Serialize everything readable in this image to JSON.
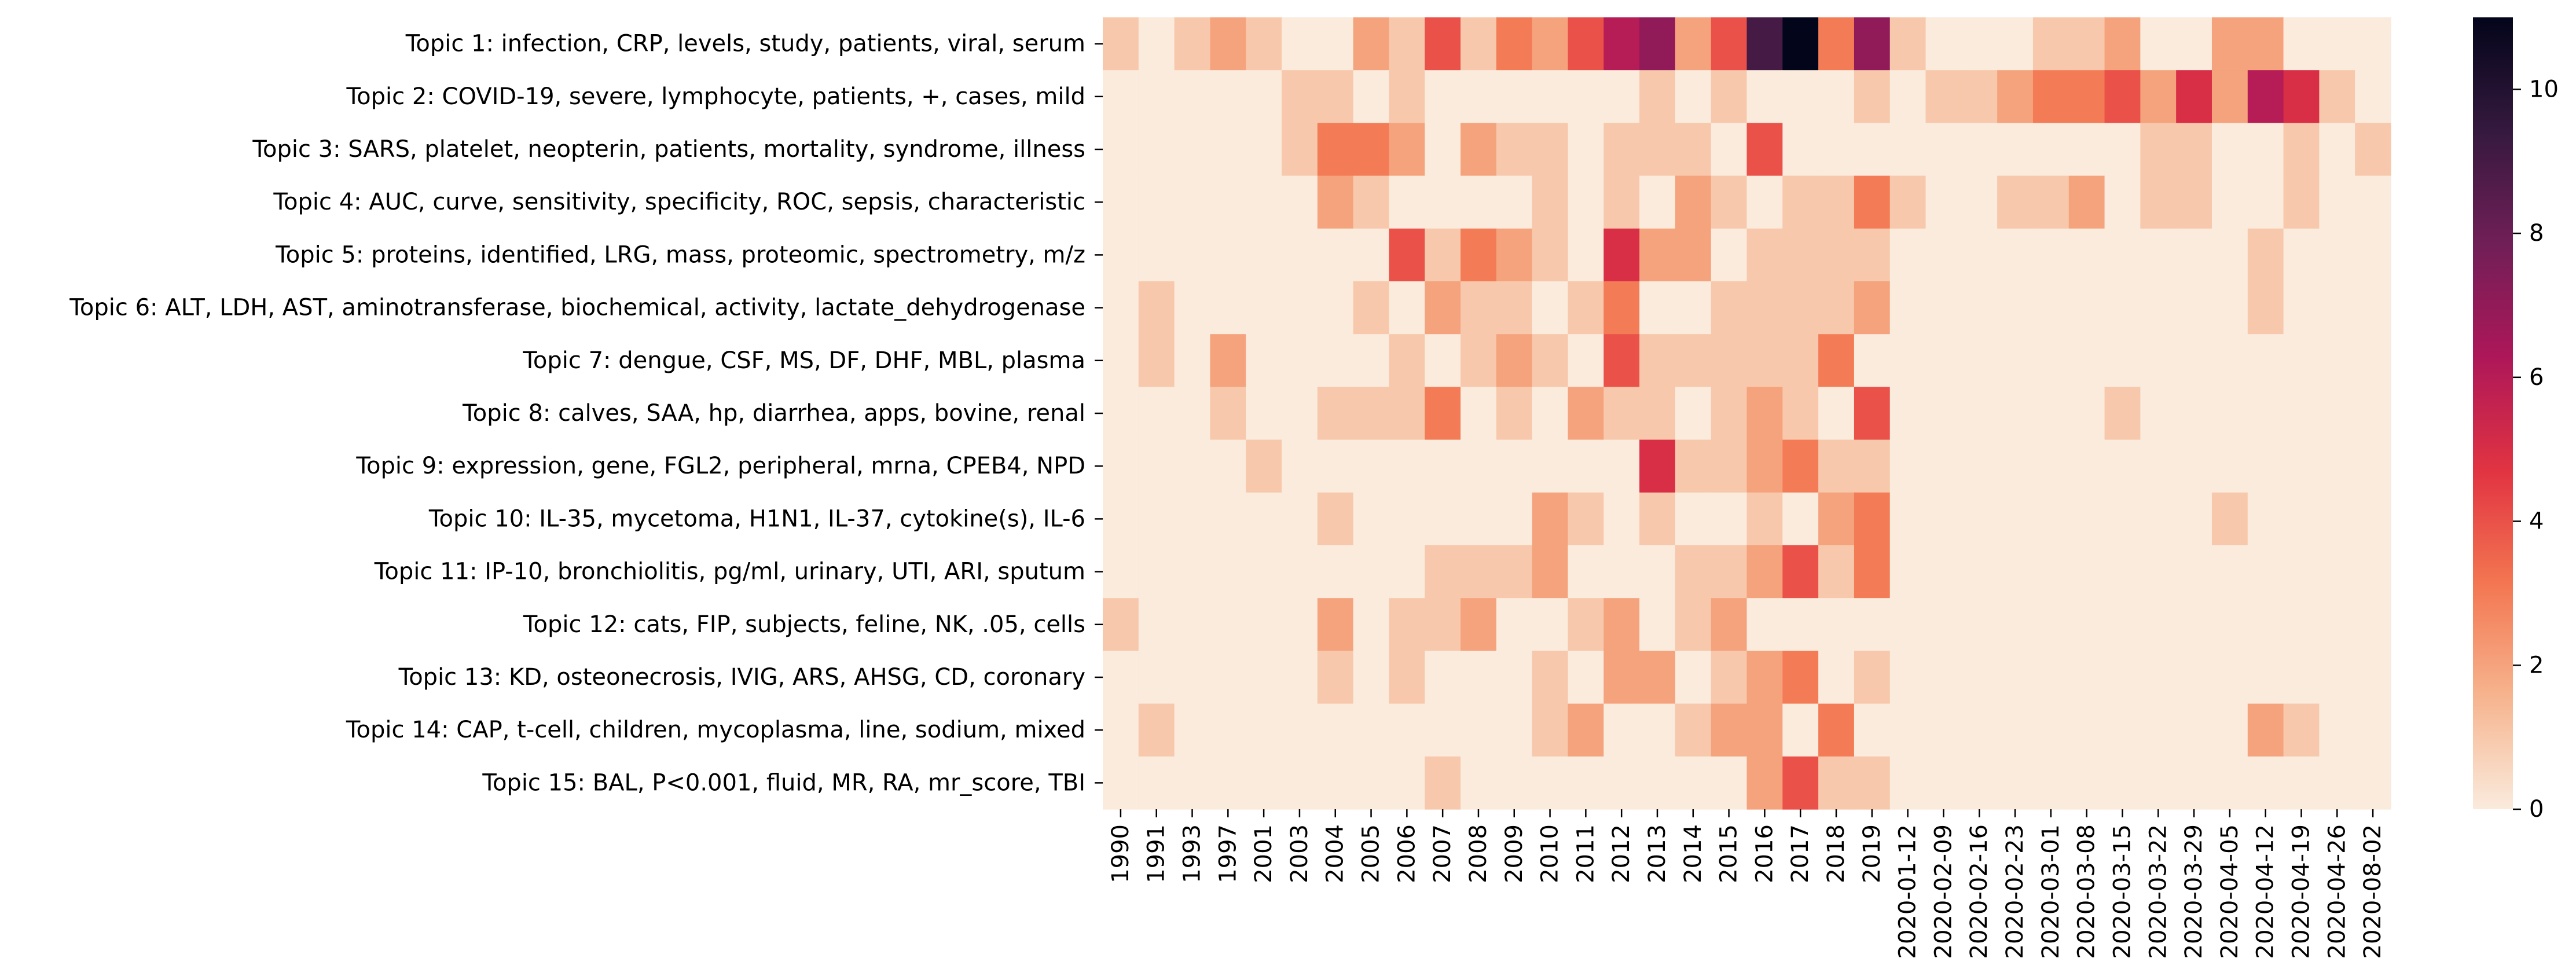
{
  "chart_data": {
    "type": "heatmap",
    "x_labels": [
      "1990",
      "1991",
      "1993",
      "1997",
      "2001",
      "2003",
      "2004",
      "2005",
      "2006",
      "2007",
      "2008",
      "2009",
      "2010",
      "2011",
      "2012",
      "2013",
      "2014",
      "2015",
      "2016",
      "2017",
      "2018",
      "2019",
      "2020-01-12",
      "2020-02-09",
      "2020-02-16",
      "2020-02-23",
      "2020-03-01",
      "2020-03-08",
      "2020-03-15",
      "2020-03-22",
      "2020-03-29",
      "2020-04-05",
      "2020-04-12",
      "2020-04-19",
      "2020-04-26",
      "2020-08-02"
    ],
    "y_labels": [
      "Topic 1: infection, CRP, levels, study, patients, viral, serum",
      "Topic 2: COVID-19, severe, lymphocyte, patients, +, cases, mild",
      "Topic 3: SARS, platelet, neopterin, patients, mortality, syndrome, illness",
      "Topic 4: AUC, curve, sensitivity, specificity, ROC, sepsis, characteristic",
      "Topic 5: proteins, identified, LRG, mass, proteomic, spectrometry, m/z",
      "Topic 6: ALT, LDH, AST, aminotransferase, biochemical, activity, lactate_dehydrogenase",
      "Topic 7: dengue, CSF, MS, DF, DHF, MBL, plasma",
      "Topic 8: calves, SAA, hp, diarrhea, apps, bovine, renal",
      "Topic 9: expression, gene, FGL2, peripheral, mrna, CPEB4, NPD",
      "Topic 10: IL-35, mycetoma, H1N1, IL-37, cytokine(s), IL-6",
      "Topic 11: IP-10, bronchiolitis, pg/ml, urinary, UTI, ARI, sputum",
      "Topic 12: cats, FIP, subjects, feline, NK, .05, cells",
      "Topic 13: KD, osteonecrosis, IVIG, ARS, AHSG, CD, coronary",
      "Topic 14: CAP, t-cell, children, mycoplasma, line, sodium, mixed",
      "Topic 15: BAL, P<0.001, fluid, MR, RA, mr_score, TBI"
    ],
    "values": [
      [
        1,
        0,
        1,
        2,
        1,
        0,
        0,
        2,
        1,
        4,
        1,
        3,
        2,
        4,
        6,
        7,
        2,
        4,
        9,
        11,
        3,
        7,
        1,
        0,
        0,
        0,
        1,
        1,
        2,
        0,
        0,
        2,
        2,
        0,
        0,
        0
      ],
      [
        0,
        0,
        0,
        0,
        0,
        1,
        1,
        0,
        1,
        0,
        0,
        0,
        0,
        0,
        0,
        1,
        0,
        1,
        0,
        0,
        0,
        1,
        0,
        1,
        1,
        2,
        3,
        3,
        4,
        2,
        5,
        2,
        6,
        5,
        1,
        0
      ],
      [
        0,
        0,
        0,
        0,
        0,
        1,
        3,
        3,
        2,
        0,
        2,
        1,
        1,
        0,
        1,
        1,
        1,
        0,
        4,
        0,
        0,
        0,
        0,
        0,
        0,
        0,
        0,
        0,
        0,
        1,
        1,
        0,
        0,
        1,
        0,
        1
      ],
      [
        0,
        0,
        0,
        0,
        0,
        0,
        2,
        1,
        0,
        0,
        0,
        0,
        1,
        0,
        1,
        0,
        2,
        1,
        0,
        1,
        1,
        3,
        1,
        0,
        0,
        1,
        1,
        2,
        0,
        1,
        1,
        0,
        0,
        1,
        0,
        0
      ],
      [
        0,
        0,
        0,
        0,
        0,
        0,
        0,
        0,
        4,
        1,
        3,
        2,
        1,
        0,
        5,
        2,
        2,
        0,
        1,
        1,
        1,
        1,
        0,
        0,
        0,
        0,
        0,
        0,
        0,
        0,
        0,
        0,
        1,
        0,
        0,
        0
      ],
      [
        0,
        1,
        0,
        0,
        0,
        0,
        0,
        1,
        0,
        2,
        1,
        1,
        0,
        1,
        3,
        0,
        0,
        1,
        1,
        1,
        1,
        2,
        0,
        0,
        0,
        0,
        0,
        0,
        0,
        0,
        0,
        0,
        1,
        0,
        0,
        0
      ],
      [
        0,
        1,
        0,
        2,
        0,
        0,
        0,
        0,
        1,
        0,
        1,
        2,
        1,
        0,
        4,
        1,
        1,
        1,
        1,
        1,
        3,
        0,
        0,
        0,
        0,
        0,
        0,
        0,
        0,
        0,
        0,
        0,
        0,
        0,
        0,
        0
      ],
      [
        0,
        0,
        0,
        1,
        0,
        0,
        1,
        1,
        1,
        3,
        0,
        1,
        0,
        2,
        1,
        1,
        0,
        1,
        2,
        1,
        0,
        4,
        0,
        0,
        0,
        0,
        0,
        0,
        1,
        0,
        0,
        0,
        0,
        0,
        0,
        0
      ],
      [
        0,
        0,
        0,
        0,
        1,
        0,
        0,
        0,
        0,
        0,
        0,
        0,
        0,
        0,
        0,
        5,
        1,
        1,
        2,
        3,
        1,
        1,
        0,
        0,
        0,
        0,
        0,
        0,
        0,
        0,
        0,
        0,
        0,
        0,
        0,
        0
      ],
      [
        0,
        0,
        0,
        0,
        0,
        0,
        1,
        0,
        0,
        0,
        0,
        0,
        2,
        1,
        0,
        1,
        0,
        0,
        1,
        0,
        2,
        3,
        0,
        0,
        0,
        0,
        0,
        0,
        0,
        0,
        0,
        1,
        0,
        0,
        0,
        0
      ],
      [
        0,
        0,
        0,
        0,
        0,
        0,
        0,
        0,
        0,
        1,
        1,
        1,
        2,
        0,
        0,
        0,
        1,
        1,
        2,
        4,
        1,
        3,
        0,
        0,
        0,
        0,
        0,
        0,
        0,
        0,
        0,
        0,
        0,
        0,
        0,
        0
      ],
      [
        1,
        0,
        0,
        0,
        0,
        0,
        2,
        0,
        1,
        1,
        2,
        0,
        0,
        1,
        2,
        0,
        1,
        2,
        0,
        0,
        0,
        0,
        0,
        0,
        0,
        0,
        0,
        0,
        0,
        0,
        0,
        0,
        0,
        0,
        0,
        0
      ],
      [
        0,
        0,
        0,
        0,
        0,
        0,
        1,
        0,
        1,
        0,
        0,
        0,
        1,
        0,
        2,
        2,
        0,
        1,
        2,
        3,
        0,
        1,
        0,
        0,
        0,
        0,
        0,
        0,
        0,
        0,
        0,
        0,
        0,
        0,
        0,
        0
      ],
      [
        0,
        1,
        0,
        0,
        0,
        0,
        0,
        0,
        0,
        0,
        0,
        0,
        1,
        2,
        0,
        0,
        1,
        2,
        2,
        0,
        3,
        0,
        0,
        0,
        0,
        0,
        0,
        0,
        0,
        0,
        0,
        0,
        2,
        1,
        0,
        0
      ],
      [
        0,
        0,
        0,
        0,
        0,
        0,
        0,
        0,
        0,
        1,
        0,
        0,
        0,
        0,
        0,
        0,
        0,
        0,
        2,
        4,
        1,
        1,
        0,
        0,
        0,
        0,
        0,
        0,
        0,
        0,
        0,
        0,
        0,
        0,
        0,
        0
      ]
    ],
    "vmin": 0,
    "vmax": 11,
    "colormap": "rocket_r",
    "colormap_stops": [
      "#faebdd",
      "#f6b48e",
      "#f37651",
      "#e13342",
      "#ad1759",
      "#701f57",
      "#35193e",
      "#03051a"
    ],
    "colorbar_ticks": [
      0,
      2,
      4,
      6,
      8,
      10
    ],
    "title": "",
    "xlabel": "",
    "ylabel": ""
  }
}
